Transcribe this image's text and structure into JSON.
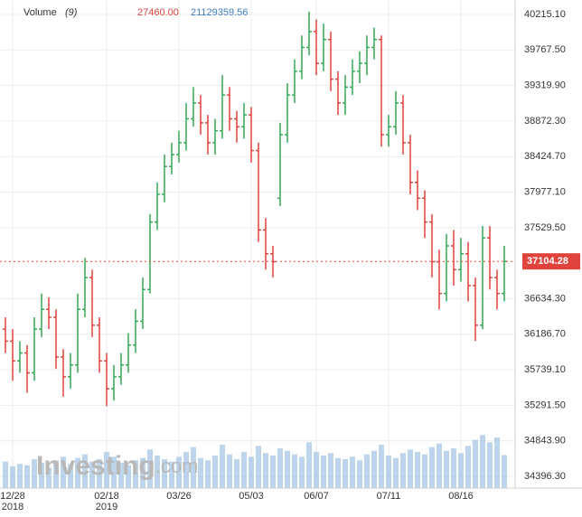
{
  "chart_data": {
    "type": "ohlc",
    "legend": {
      "name": "Volume",
      "period": "(9)",
      "value1": "27460.00",
      "value2": "21129359.56"
    },
    "watermark": "Investing",
    "watermark_suffix": ".com",
    "categories": [
      null,
      "12/28",
      null,
      null,
      null,
      null,
      null,
      null,
      null,
      null,
      null,
      null,
      null,
      null,
      "02/18",
      null,
      null,
      null,
      null,
      null,
      null,
      null,
      null,
      null,
      "03/26",
      null,
      null,
      null,
      null,
      null,
      null,
      null,
      null,
      null,
      "05/03",
      null,
      null,
      null,
      null,
      null,
      null,
      null,
      null,
      "06/07",
      null,
      null,
      null,
      null,
      null,
      null,
      null,
      null,
      null,
      "07/11",
      null,
      null,
      null,
      null,
      null,
      null,
      null,
      null,
      null,
      "08/16",
      null,
      null,
      null,
      null,
      null,
      null
    ],
    "year_labels": [
      {
        "index": 1,
        "label": "2018"
      },
      {
        "index": 14,
        "label": "2019"
      }
    ],
    "open": [
      36250,
      36100,
      35850,
      35950,
      35700,
      36250,
      36500,
      36400,
      35900,
      35650,
      35800,
      36500,
      36900,
      36300,
      35850,
      35500,
      35650,
      35800,
      36050,
      36350,
      36750,
      37600,
      37950,
      38300,
      38450,
      38600,
      38900,
      39100,
      38850,
      38600,
      38750,
      39200,
      38900,
      38800,
      38950,
      38500,
      37500,
      37200,
      37900,
      38700,
      39200,
      39500,
      39800,
      40000,
      39600,
      39900,
      39400,
      39100,
      39300,
      39500,
      39600,
      39800,
      39900,
      38700,
      38800,
      39100,
      38600,
      38100,
      37900,
      37600,
      37100,
      36700,
      37300,
      37000,
      37200,
      36800,
      36300,
      37400,
      36900,
      36700
    ],
    "high": [
      36400,
      36250,
      36100,
      36050,
      36400,
      36700,
      36650,
      36500,
      36000,
      35950,
      36700,
      37150,
      37000,
      36400,
      35950,
      35800,
      35950,
      36200,
      36500,
      36900,
      37700,
      38100,
      38450,
      38600,
      38750,
      39100,
      39300,
      39200,
      38950,
      38900,
      39450,
      39300,
      39000,
      39100,
      39050,
      38600,
      37650,
      37300,
      38850,
      39350,
      39650,
      39950,
      40250,
      40150,
      40100,
      40000,
      39500,
      39450,
      39650,
      39750,
      39950,
      40050,
      39950,
      38950,
      39250,
      39200,
      38700,
      38250,
      38000,
      37700,
      37250,
      37450,
      37500,
      37400,
      37350,
      36900,
      37550,
      37550,
      37000,
      37300
    ],
    "low": [
      35950,
      35600,
      35700,
      35450,
      35600,
      36150,
      36250,
      35750,
      35400,
      35500,
      35700,
      36400,
      36150,
      35700,
      35280,
      35350,
      35550,
      35700,
      35950,
      36250,
      36700,
      37500,
      37850,
      38200,
      38350,
      38500,
      38800,
      38700,
      38450,
      38450,
      38650,
      38750,
      38600,
      38650,
      38350,
      37350,
      37000,
      36900,
      37800,
      38600,
      39100,
      39400,
      39700,
      39450,
      39500,
      39250,
      38950,
      38950,
      39200,
      39350,
      39450,
      39650,
      38550,
      38550,
      38700,
      38450,
      37950,
      37750,
      37400,
      36900,
      36500,
      36600,
      36800,
      36850,
      36600,
      36100,
      36250,
      36750,
      36500,
      36600
    ],
    "close": [
      36100,
      35850,
      35950,
      35700,
      36250,
      36500,
      36400,
      35900,
      35650,
      35800,
      36500,
      36900,
      36300,
      35850,
      35500,
      35650,
      35800,
      36050,
      36350,
      36750,
      37600,
      37950,
      38300,
      38450,
      38600,
      38900,
      39100,
      38850,
      38600,
      38750,
      39200,
      38900,
      38800,
      38950,
      38500,
      37500,
      37200,
      37100,
      38700,
      39200,
      39500,
      39800,
      40000,
      39600,
      39900,
      39400,
      39100,
      39300,
      39500,
      39600,
      39800,
      39900,
      38700,
      38800,
      39100,
      38600,
      38100,
      37900,
      37600,
      37100,
      36700,
      37300,
      37000,
      37200,
      36800,
      36300,
      37400,
      36900,
      36700,
      37104.28
    ],
    "volume": [
      22000,
      18000,
      20000,
      19000,
      24000,
      21000,
      17000,
      23000,
      26000,
      20000,
      25000,
      28000,
      22000,
      24000,
      30000,
      26000,
      21000,
      19000,
      23000,
      25000,
      32000,
      27000,
      24000,
      22000,
      26000,
      30000,
      34000,
      25000,
      23000,
      27000,
      36000,
      28000,
      24000,
      30000,
      26000,
      35000,
      29000,
      27000,
      33000,
      31000,
      28000,
      26000,
      38000,
      30000,
      27000,
      29000,
      25000,
      24000,
      26000,
      23000,
      28000,
      31000,
      36000,
      27000,
      25000,
      29000,
      32000,
      30000,
      28000,
      34000,
      37000,
      31000,
      33000,
      29000,
      35000,
      40000,
      44000,
      38000,
      42000,
      27460
    ],
    "volume_ylim": [
      0,
      60000
    ],
    "last_label": "37104.28",
    "ylim": [
      34248.3,
      40397.3
    ],
    "yticks": [
      {
        "value": 40215.1,
        "label": "40215.10"
      },
      {
        "value": 39767.5,
        "label": "39767.50"
      },
      {
        "value": 39319.9,
        "label": "39319.90"
      },
      {
        "value": 38872.3,
        "label": "38872.30"
      },
      {
        "value": 38424.7,
        "label": "38424.70"
      },
      {
        "value": 37977.1,
        "label": "37977.10"
      },
      {
        "value": 37529.5,
        "label": "37529.50"
      },
      {
        "value": 36634.3,
        "label": "36634.30"
      },
      {
        "value": 36186.7,
        "label": "36186.70"
      },
      {
        "value": 35739.1,
        "label": "35739.10"
      },
      {
        "value": 35291.5,
        "label": "35291.50"
      },
      {
        "value": 34843.9,
        "label": "34843.90"
      },
      {
        "value": 34396.3,
        "label": "34396.30"
      }
    ],
    "up_color": "#34a853",
    "down_color": "#e0433b",
    "flat_color": "#222222",
    "volume_color": "#9fc3e6",
    "grid": true
  }
}
